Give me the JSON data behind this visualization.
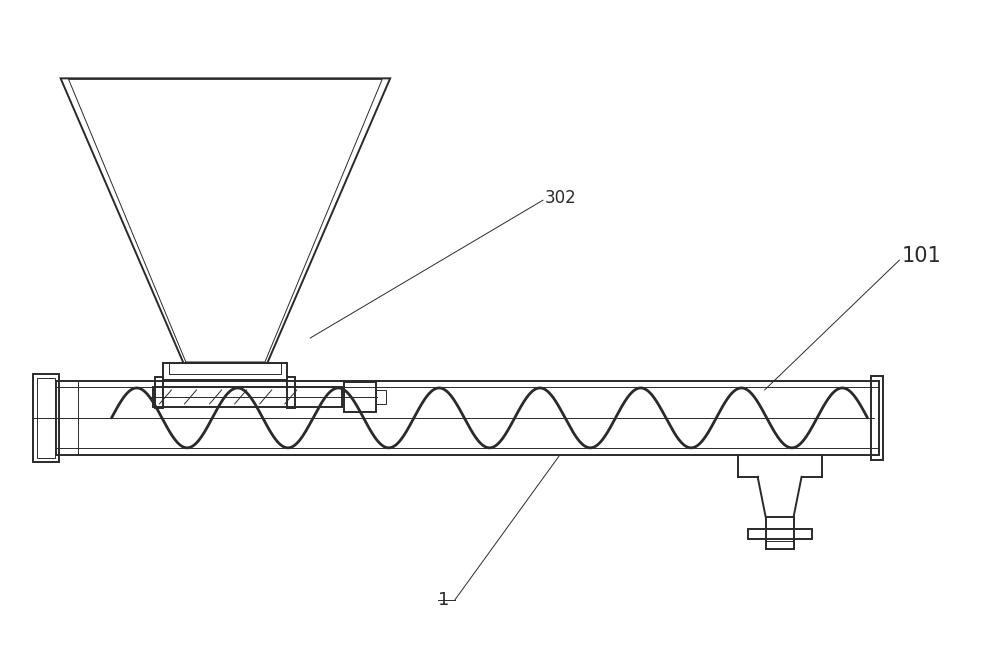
{
  "bg_color": "#ffffff",
  "line_color": "#2a2a2a",
  "lw_main": 1.4,
  "lw_thin": 0.7,
  "lw_helix": 2.0,
  "label_302": "302",
  "label_101": "101",
  "label_1": "1",
  "figsize": [
    10.0,
    6.71
  ],
  "dpi": 100
}
